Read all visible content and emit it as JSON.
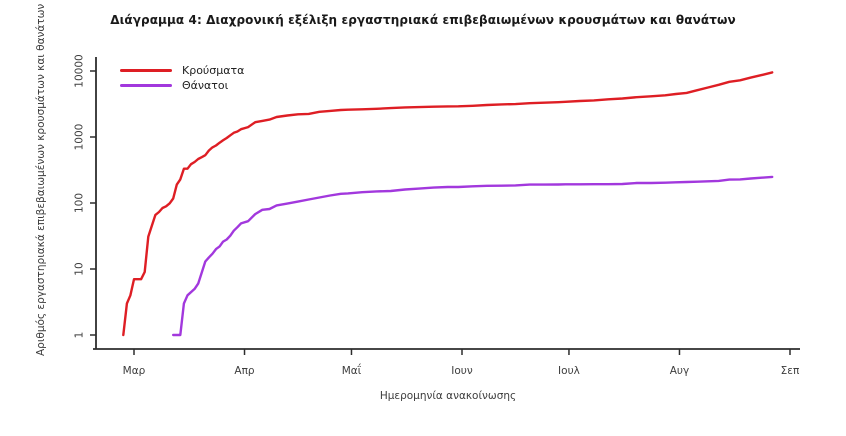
{
  "chart_data": {
    "type": "line",
    "title": "Διάγραμμα 4: Διαχρονική εξέλιξη εργαστηριακά επιβεβαιωμένων κρουσμάτων και θανάτων",
    "xlabel": "Ημερομηνία ανακοίνωσης",
    "ylabel": "Αριθμός εργαστηριακά επιβεβαιωμένων κρουσμάτων και θανάτων",
    "y_scale": "log10",
    "ylim": [
      1,
      16000
    ],
    "y_ticks": [
      1,
      10,
      100,
      1000,
      10000
    ],
    "grid": false,
    "legend_position": "top-left",
    "axis_color": "#2d2d2d",
    "label_color": "#3d3d3d",
    "x_unit": "days since 1 March 2020",
    "x_ticks": [
      {
        "label": "Μαρ",
        "day": 0
      },
      {
        "label": "Απρ",
        "day": 31
      },
      {
        "label": "Μαΐ",
        "day": 61
      },
      {
        "label": "Ιουν",
        "day": 92
      },
      {
        "label": "Ιουλ",
        "day": 122
      },
      {
        "label": "Αυγ",
        "day": 153
      },
      {
        "label": "Σεπ",
        "day": 184
      }
    ],
    "series": [
      {
        "name": "Κρούσματα",
        "color": "#de1e24",
        "points": [
          [
            -3,
            1
          ],
          [
            -2,
            3
          ],
          [
            -1,
            4
          ],
          [
            0,
            7
          ],
          [
            2,
            7
          ],
          [
            3,
            9
          ],
          [
            4,
            31
          ],
          [
            5,
            45
          ],
          [
            6,
            66
          ],
          [
            7,
            73
          ],
          [
            8,
            84
          ],
          [
            9,
            89
          ],
          [
            10,
            99
          ],
          [
            11,
            117
          ],
          [
            12,
            190
          ],
          [
            13,
            228
          ],
          [
            14,
            331
          ],
          [
            15,
            331
          ],
          [
            16,
            387
          ],
          [
            17,
            418
          ],
          [
            18,
            464
          ],
          [
            19,
            495
          ],
          [
            20,
            530
          ],
          [
            21,
            624
          ],
          [
            22,
            695
          ],
          [
            23,
            743
          ],
          [
            24,
            821
          ],
          [
            25,
            892
          ],
          [
            26,
            966
          ],
          [
            27,
            1061
          ],
          [
            28,
            1156
          ],
          [
            29,
            1212
          ],
          [
            30,
            1314
          ],
          [
            32,
            1415
          ],
          [
            34,
            1673
          ],
          [
            36,
            1755
          ],
          [
            38,
            1832
          ],
          [
            40,
            2011
          ],
          [
            43,
            2114
          ],
          [
            46,
            2207
          ],
          [
            49,
            2235
          ],
          [
            52,
            2408
          ],
          [
            55,
            2490
          ],
          [
            58,
            2566
          ],
          [
            60,
            2591
          ],
          [
            64,
            2632
          ],
          [
            68,
            2678
          ],
          [
            72,
            2744
          ],
          [
            76,
            2810
          ],
          [
            80,
            2840
          ],
          [
            84,
            2876
          ],
          [
            88,
            2906
          ],
          [
            91,
            2917
          ],
          [
            95,
            2967
          ],
          [
            99,
            3049
          ],
          [
            103,
            3121
          ],
          [
            107,
            3148
          ],
          [
            111,
            3256
          ],
          [
            115,
            3310
          ],
          [
            119,
            3366
          ],
          [
            121,
            3409
          ],
          [
            125,
            3511
          ],
          [
            129,
            3589
          ],
          [
            133,
            3732
          ],
          [
            137,
            3826
          ],
          [
            141,
            4007
          ],
          [
            145,
            4135
          ],
          [
            149,
            4279
          ],
          [
            152,
            4477
          ],
          [
            155,
            4662
          ],
          [
            158,
            5123
          ],
          [
            161,
            5623
          ],
          [
            164,
            6177
          ],
          [
            167,
            6858
          ],
          [
            170,
            7222
          ],
          [
            173,
            7934
          ],
          [
            176,
            8664
          ],
          [
            179,
            9531
          ]
        ]
      },
      {
        "name": "Θάνατοι",
        "color": "#a238dd",
        "points": [
          [
            11,
            1
          ],
          [
            13,
            1
          ],
          [
            14,
            3
          ],
          [
            15,
            4
          ],
          [
            17,
            5
          ],
          [
            18,
            6
          ],
          [
            20,
            13
          ],
          [
            21,
            15
          ],
          [
            22,
            17
          ],
          [
            23,
            20
          ],
          [
            24,
            22
          ],
          [
            25,
            26
          ],
          [
            26,
            28
          ],
          [
            27,
            32
          ],
          [
            28,
            38
          ],
          [
            29,
            43
          ],
          [
            30,
            49
          ],
          [
            32,
            53
          ],
          [
            34,
            68
          ],
          [
            36,
            79
          ],
          [
            38,
            81
          ],
          [
            40,
            92
          ],
          [
            43,
            98
          ],
          [
            46,
            105
          ],
          [
            49,
            113
          ],
          [
            52,
            121
          ],
          [
            55,
            130
          ],
          [
            58,
            138
          ],
          [
            60,
            140
          ],
          [
            64,
            146
          ],
          [
            68,
            150
          ],
          [
            72,
            152
          ],
          [
            76,
            160
          ],
          [
            80,
            165
          ],
          [
            84,
            171
          ],
          [
            88,
            175
          ],
          [
            91,
            175
          ],
          [
            95,
            179
          ],
          [
            99,
            182
          ],
          [
            103,
            183
          ],
          [
            107,
            185
          ],
          [
            111,
            190
          ],
          [
            115,
            190
          ],
          [
            119,
            191
          ],
          [
            121,
            192
          ],
          [
            125,
            192
          ],
          [
            129,
            193
          ],
          [
            133,
            193
          ],
          [
            137,
            194
          ],
          [
            141,
            201
          ],
          [
            145,
            201
          ],
          [
            149,
            203
          ],
          [
            152,
            206
          ],
          [
            155,
            208
          ],
          [
            158,
            210
          ],
          [
            161,
            213
          ],
          [
            164,
            216
          ],
          [
            167,
            226
          ],
          [
            170,
            228
          ],
          [
            173,
            235
          ],
          [
            176,
            242
          ],
          [
            179,
            249
          ]
        ]
      }
    ]
  }
}
